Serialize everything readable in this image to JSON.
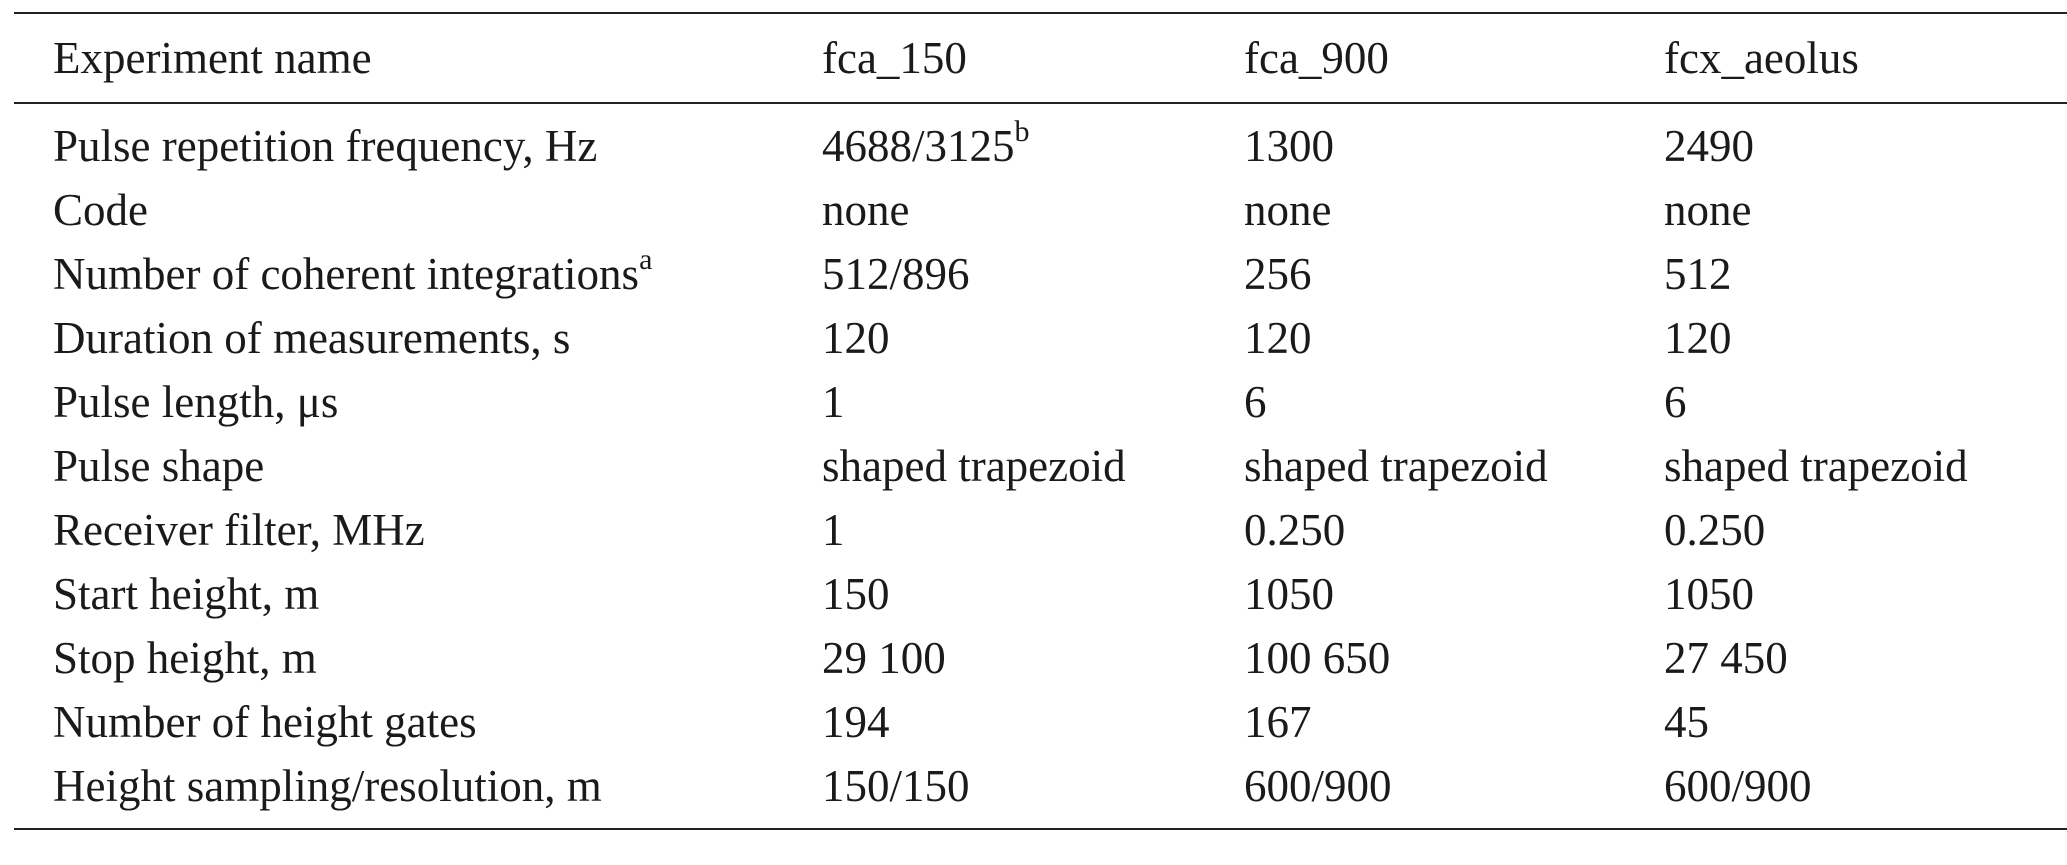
{
  "table": {
    "columns": [
      "Experiment name",
      "fca_150",
      "fca_900",
      "fcx_aeolus"
    ],
    "rows": [
      {
        "label": "Pulse repetition frequency, Hz",
        "label_sup": "",
        "v1": "4688/3125",
        "v1_sup": "b",
        "v2": "1300",
        "v3": "2490"
      },
      {
        "label": "Code",
        "label_sup": "",
        "v1": "none",
        "v1_sup": "",
        "v2": "none",
        "v3": "none"
      },
      {
        "label": "Number of coherent integrations",
        "label_sup": "a",
        "v1": "512/896",
        "v1_sup": "",
        "v2": "256",
        "v3": "512"
      },
      {
        "label": "Duration of measurements, s",
        "label_sup": "",
        "v1": "120",
        "v1_sup": "",
        "v2": "120",
        "v3": "120"
      },
      {
        "label": "Pulse length, μs",
        "label_sup": "",
        "v1": "1",
        "v1_sup": "",
        "v2": "6",
        "v3": "6"
      },
      {
        "label": "Pulse shape",
        "label_sup": "",
        "v1": "shaped trapezoid",
        "v1_sup": "",
        "v2": "shaped trapezoid",
        "v3": "shaped trapezoid"
      },
      {
        "label": "Receiver filter, MHz",
        "label_sup": "",
        "v1": "1",
        "v1_sup": "",
        "v2": "0.250",
        "v3": "0.250"
      },
      {
        "label": "Start height, m",
        "label_sup": "",
        "v1": "150",
        "v1_sup": "",
        "v2": "1050",
        "v3": "1050"
      },
      {
        "label": "Stop height, m",
        "label_sup": "",
        "v1": "29 100",
        "v1_sup": "",
        "v2": "100 650",
        "v3": "27 450"
      },
      {
        "label": "Number of height gates",
        "label_sup": "",
        "v1": "194",
        "v1_sup": "",
        "v2": "167",
        "v3": "45"
      },
      {
        "label": "Height sampling/resolution, m",
        "label_sup": "",
        "v1": "150/150",
        "v1_sup": "",
        "v2": "600/900",
        "v3": "600/900"
      }
    ]
  }
}
